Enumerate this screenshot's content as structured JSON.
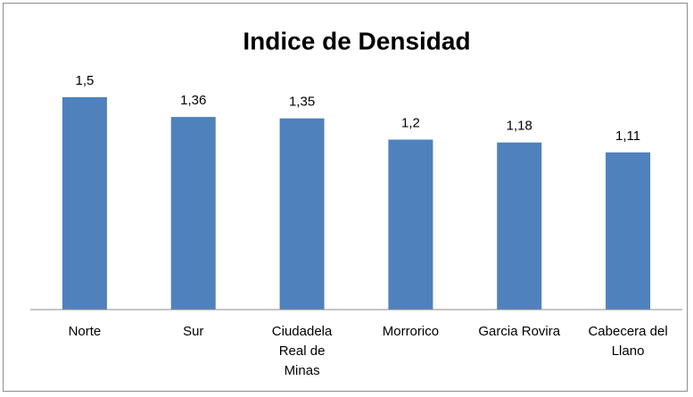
{
  "chart_data": {
    "type": "bar",
    "title": "Indice de Densidad",
    "categories": [
      "Norte",
      "Sur",
      "Ciudadela Real de Minas",
      "Morrorico",
      "Garcia Rovira",
      "Cabecera del Llano"
    ],
    "values": [
      1.5,
      1.36,
      1.35,
      1.2,
      1.18,
      1.11
    ],
    "value_labels": [
      "1,5",
      "1,36",
      "1,35",
      "1,2",
      "1,18",
      "1,11"
    ],
    "color": "#4f81bd",
    "ylim": [
      0,
      1.6
    ]
  }
}
